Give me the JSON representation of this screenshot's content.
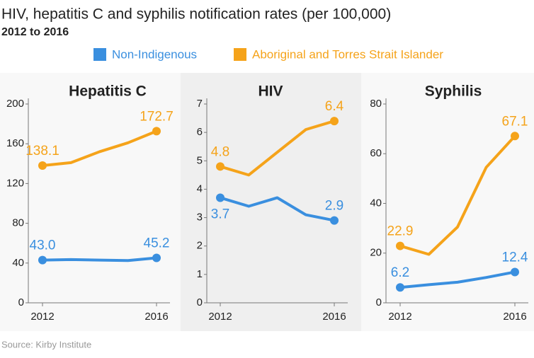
{
  "title": "HIV, hepatitis C and syphilis notification rates (per 100,000)",
  "subtitle": "2012 to 2016",
  "source": "Source: Kirby Institute",
  "chart_data": [
    {
      "type": "line",
      "title": "Hepatitis C",
      "x": [
        2012,
        2013,
        2014,
        2015,
        2016
      ],
      "xlim": [
        2012,
        2016
      ],
      "xticks": [
        2012,
        2016
      ],
      "ylim": [
        0,
        200
      ],
      "yticks": [
        0,
        40,
        80,
        120,
        160,
        200
      ],
      "grid": false,
      "series": [
        {
          "name": "Non-Indigenous",
          "color": "#3a8fdf",
          "values": [
            43.0,
            43.5,
            43.0,
            42.5,
            45.2
          ],
          "value_labels": [
            "43.0",
            null,
            null,
            null,
            "45.2"
          ]
        },
        {
          "name": "Aboriginal and Torres Strait Islander",
          "color": "#f5a31a",
          "values": [
            138.1,
            141,
            152,
            161,
            172.7
          ],
          "value_labels": [
            "138.1",
            null,
            null,
            null,
            "172.7"
          ]
        }
      ]
    },
    {
      "type": "line",
      "title": "HIV",
      "x": [
        2012,
        2013,
        2014,
        2015,
        2016
      ],
      "xlim": [
        2012,
        2016
      ],
      "xticks": [
        2012,
        2016
      ],
      "ylim": [
        0,
        7
      ],
      "yticks": [
        0,
        1,
        2,
        3,
        4,
        5,
        6,
        7
      ],
      "grid": false,
      "series": [
        {
          "name": "Non-Indigenous",
          "color": "#3a8fdf",
          "values": [
            3.7,
            3.4,
            3.7,
            3.1,
            2.9
          ],
          "value_labels": [
            "3.7",
            null,
            null,
            null,
            "2.9"
          ]
        },
        {
          "name": "Aboriginal and Torres Strait Islander",
          "color": "#f5a31a",
          "values": [
            4.8,
            4.5,
            5.3,
            6.1,
            6.4
          ],
          "value_labels": [
            "4.8",
            null,
            null,
            null,
            "6.4"
          ]
        }
      ]
    },
    {
      "type": "line",
      "title": "Syphilis",
      "x": [
        2012,
        2013,
        2014,
        2015,
        2016
      ],
      "xlim": [
        2012,
        2016
      ],
      "xticks": [
        2012,
        2016
      ],
      "ylim": [
        0,
        80
      ],
      "yticks": [
        0,
        20,
        40,
        60,
        80
      ],
      "grid": false,
      "series": [
        {
          "name": "Non-Indigenous",
          "color": "#3a8fdf",
          "values": [
            6.2,
            7.3,
            8.3,
            10.2,
            12.4
          ],
          "value_labels": [
            "6.2",
            null,
            null,
            null,
            "12.4"
          ]
        },
        {
          "name": "Aboriginal and Torres Strait Islander",
          "color": "#f5a31a",
          "values": [
            22.9,
            19.5,
            30.5,
            54.5,
            67.1
          ],
          "value_labels": [
            "22.9",
            null,
            null,
            null,
            "67.1"
          ]
        }
      ]
    }
  ]
}
